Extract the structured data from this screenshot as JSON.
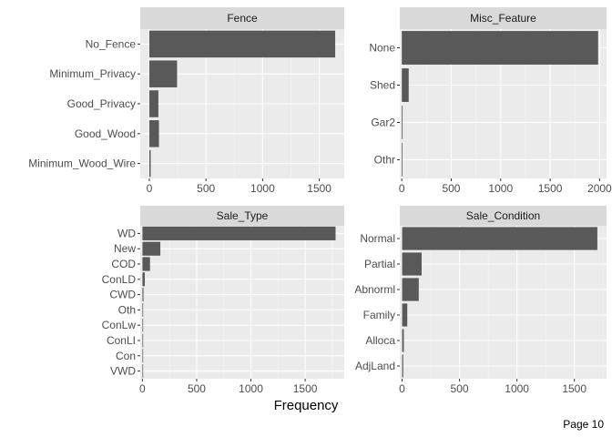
{
  "x_axis_title": "Frequency",
  "footer": {
    "page_label": "Page 10"
  },
  "colors": {
    "panel_bg": "#EBEBEB",
    "strip_bg": "#D9D9D9",
    "grid_major": "#FFFFFF",
    "bar_fill": "#595959"
  },
  "chart_data": [
    {
      "type": "bar",
      "orientation": "horizontal",
      "panel_title": "Fence",
      "categories": [
        "No_Fence",
        "Minimum_Privacy",
        "Good_Privacy",
        "Good_Wood",
        "Minimum_Wood_Wire"
      ],
      "values": [
        1640,
        245,
        80,
        85,
        12
      ],
      "xlim": [
        -80,
        1720
      ],
      "xticks": [
        0,
        500,
        1000,
        1500
      ],
      "grid": true
    },
    {
      "type": "bar",
      "orientation": "horizontal",
      "panel_title": "Misc_Feature",
      "categories": [
        "None",
        "Shed",
        "Gar2",
        "Othr"
      ],
      "values": [
        1985,
        70,
        8,
        4
      ],
      "xlim": [
        -20,
        2070
      ],
      "xticks": [
        0,
        500,
        1000,
        1500,
        2000
      ],
      "grid": true
    },
    {
      "type": "bar",
      "orientation": "horizontal",
      "panel_title": "Sale_Type",
      "categories": [
        "WD",
        "New",
        "COD",
        "ConLD",
        "CWD",
        "Oth",
        "ConLw",
        "ConLI",
        "Con",
        "VWD"
      ],
      "values": [
        1780,
        165,
        70,
        22,
        10,
        5,
        5,
        6,
        3,
        1
      ],
      "xlim": [
        -20,
        1860
      ],
      "xticks": [
        0,
        500,
        1000,
        1500
      ],
      "grid": true
    },
    {
      "type": "bar",
      "orientation": "horizontal",
      "panel_title": "Sale_Condition",
      "categories": [
        "Normal",
        "Partial",
        "Abnorml",
        "Family",
        "Alloca",
        "AdjLand"
      ],
      "values": [
        1700,
        170,
        145,
        45,
        15,
        10
      ],
      "xlim": [
        -20,
        1780
      ],
      "xticks": [
        0,
        500,
        1000,
        1500
      ],
      "grid": true
    }
  ]
}
